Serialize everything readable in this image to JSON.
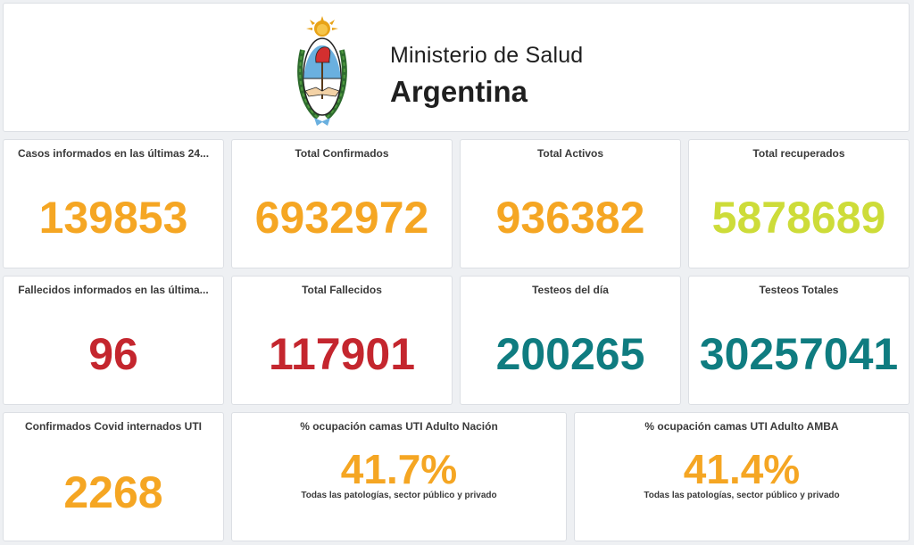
{
  "colors": {
    "orange": "#f5a623",
    "lime": "#cddc39",
    "red": "#c4262e",
    "teal": "#0f7c80"
  },
  "header": {
    "logo_icon": "coat-of-arms-icon",
    "title": "Ministerio de Salud",
    "subtitle": "Argentina"
  },
  "row1": {
    "cases_24h": {
      "title": "Casos informados en las últimas 24...",
      "value": "139853"
    },
    "total_confirmed": {
      "title": "Total Confirmados",
      "value": "6932972"
    },
    "total_active": {
      "title": "Total Activos",
      "value": "936382"
    },
    "total_recovered": {
      "title": "Total recuperados",
      "value": "5878689"
    }
  },
  "row2": {
    "deaths_recent": {
      "title": "Fallecidos informados en las última...",
      "value": "96"
    },
    "total_deaths": {
      "title": "Total Fallecidos",
      "value": "117901"
    },
    "tests_day": {
      "title": "Testeos del día",
      "value": "200265"
    },
    "tests_total": {
      "title": "Testeos Totales",
      "value": "30257041"
    }
  },
  "row3": {
    "icu_covid": {
      "title": "Confirmados Covid internados UTI",
      "value": "2268"
    },
    "icu_nation": {
      "title": "% ocupación camas UTI Adulto Nación",
      "value": "41.7%",
      "note": "Todas las patologías, sector público y privado"
    },
    "icu_amba": {
      "title": "% ocupación camas UTI Adulto AMBA",
      "value": "41.4%",
      "note": "Todas las patologías, sector público y privado"
    }
  }
}
